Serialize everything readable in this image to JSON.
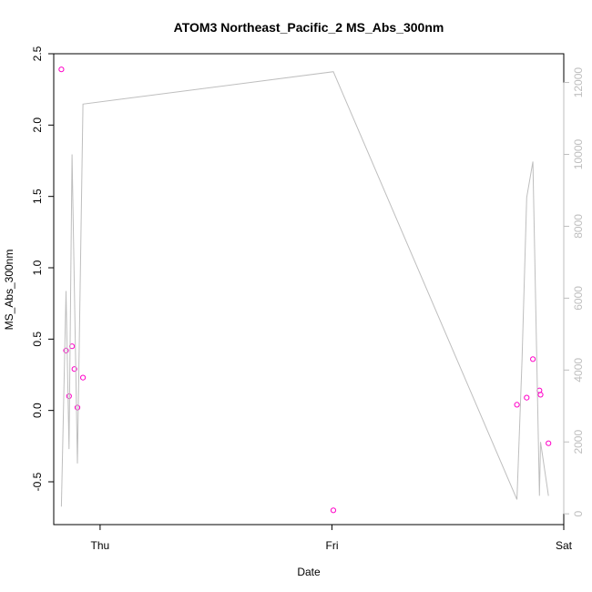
{
  "chart_data": {
    "type": "scatter",
    "title": "ATOM3 Northeast_Pacific_2 MS_Abs_300nm",
    "xlabel": "Date",
    "ylabel": "MS_Abs_300nm",
    "x_tick_labels": [
      "Thu",
      "Fri",
      "Sat"
    ],
    "x_tick_values": [
      1,
      2,
      3
    ],
    "xlim": [
      0.8,
      3.0
    ],
    "ylim": [
      -0.8,
      2.5
    ],
    "y_ticks": [
      -0.5,
      0.0,
      0.5,
      1.0,
      1.5,
      2.0,
      2.5
    ],
    "y_tick_labels": [
      "-0.5",
      "0.0",
      "0.5",
      "1.0",
      "1.5",
      "2.0",
      "2.5"
    ],
    "y2lim": [
      -300,
      12800
    ],
    "y2_ticks": [
      0,
      2000,
      4000,
      6000,
      8000,
      10000,
      12000
    ],
    "y2_tick_labels": [
      "0",
      "2000",
      "4000",
      "6000",
      "8000",
      "10000",
      "12000"
    ],
    "grid": false,
    "series": [
      {
        "kind": "points",
        "axis": "left",
        "color": "#ff00c8",
        "x": [
          0.833,
          0.853,
          0.866,
          0.879,
          0.889,
          0.902,
          0.926,
          2.006,
          2.798,
          2.84,
          2.867,
          2.895,
          2.9,
          2.934
        ],
        "y": [
          2.39,
          0.42,
          0.1,
          0.45,
          0.29,
          0.02,
          0.23,
          -0.7,
          0.04,
          0.09,
          0.36,
          0.14,
          0.11,
          -0.23
        ]
      },
      {
        "kind": "line",
        "axis": "right",
        "color": "#bebebe",
        "x": [
          0.833,
          0.853,
          0.866,
          0.879,
          0.902,
          0.926,
          2.006,
          2.798,
          2.82,
          2.84,
          2.867,
          2.895,
          2.9,
          2.934
        ],
        "y": [
          200,
          6200,
          1800,
          10000,
          1400,
          11400,
          12300,
          400,
          4300,
          8800,
          9800,
          500,
          2000,
          500
        ]
      }
    ]
  }
}
